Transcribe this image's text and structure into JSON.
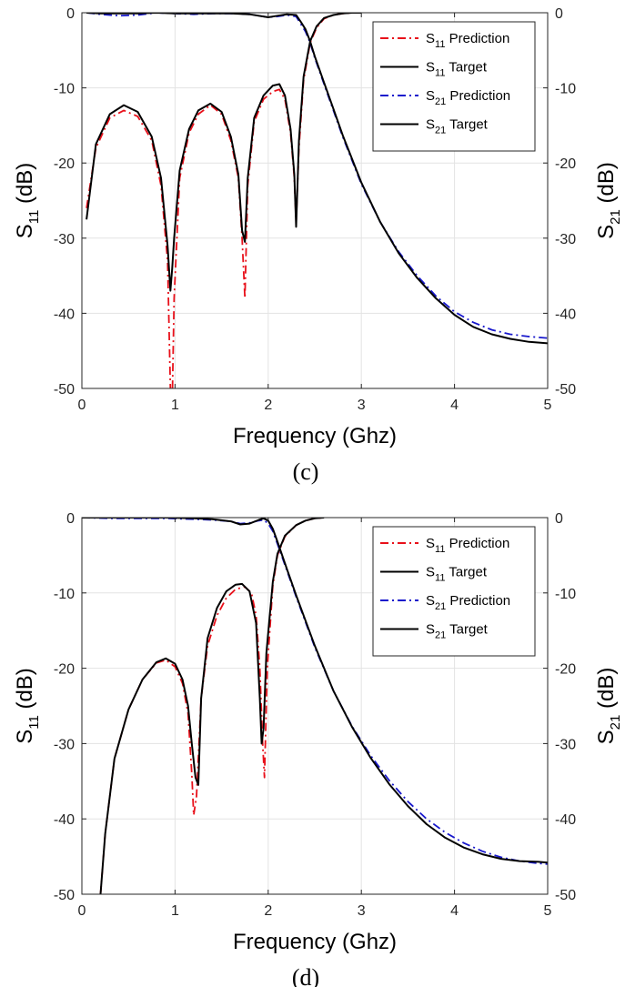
{
  "chart_data": [
    {
      "type": "line",
      "caption": "(c)",
      "xlabel": "Frequency (Ghz)",
      "ylabel_left": {
        "main": "S",
        "sub": "11",
        "unit": " (dB)"
      },
      "ylabel_right": {
        "main": "S",
        "sub": "21",
        "unit": " (dB)"
      },
      "xlim": [
        0,
        5
      ],
      "ylim": [
        -50,
        0
      ],
      "xticks": [
        "0",
        "1",
        "2",
        "3",
        "4",
        "5"
      ],
      "yticks": [
        "0",
        "-10",
        "-20",
        "-30",
        "-40",
        "-50"
      ],
      "grid": true,
      "legend_position": "top-right",
      "series": [
        {
          "name": "S11 Prediction",
          "legend_main": "S",
          "legend_sub": "11",
          "legend_rest": " Prediction",
          "color": "#e8101a",
          "style": "dashdot",
          "x": [
            0.05,
            0.15,
            0.3,
            0.45,
            0.6,
            0.75,
            0.85,
            0.92,
            0.95,
            0.97,
            0.99,
            1.05,
            1.15,
            1.25,
            1.38,
            1.5,
            1.6,
            1.68,
            1.72,
            1.75,
            1.78,
            1.85,
            1.95,
            2.05,
            2.12,
            2.18,
            2.24,
            2.28,
            2.3,
            2.33,
            2.38,
            2.45,
            2.52,
            2.6,
            2.7,
            2.8,
            2.9,
            3.0
          ],
          "y": [
            -26,
            -18,
            -14,
            -13,
            -13.8,
            -17,
            -23,
            -33,
            -50,
            -52,
            -38,
            -22,
            -16,
            -13.5,
            -12.3,
            -13.5,
            -17,
            -22,
            -30,
            -38,
            -23,
            -14.5,
            -11.5,
            -10.5,
            -10.2,
            -11.5,
            -16,
            -22,
            -28,
            -18,
            -9,
            -4,
            -2,
            -0.8,
            -0.3,
            -0.1,
            0,
            0
          ]
        },
        {
          "name": "S11 Target",
          "legend_main": "S",
          "legend_sub": "11",
          "legend_rest": " Target",
          "color": "#000000",
          "style": "solid",
          "x": [
            0.05,
            0.15,
            0.3,
            0.45,
            0.6,
            0.75,
            0.85,
            0.92,
            0.95,
            0.97,
            0.99,
            1.05,
            1.15,
            1.25,
            1.38,
            1.5,
            1.6,
            1.68,
            1.72,
            1.75,
            1.78,
            1.85,
            1.95,
            2.05,
            2.12,
            2.18,
            2.24,
            2.28,
            2.3,
            2.33,
            2.38,
            2.45,
            2.52,
            2.6,
            2.7,
            2.8,
            2.9,
            3.0
          ],
          "y": [
            -27.5,
            -17.5,
            -13.5,
            -12.3,
            -13.2,
            -16.5,
            -22,
            -31,
            -37,
            -34,
            -30,
            -21,
            -15.5,
            -13,
            -12.1,
            -13.2,
            -16.5,
            -21.5,
            -29,
            -30.5,
            -22,
            -14,
            -11,
            -9.7,
            -9.5,
            -11,
            -15.5,
            -21.5,
            -28.5,
            -17,
            -8.5,
            -3.8,
            -1.8,
            -0.7,
            -0.3,
            -0.1,
            0,
            0
          ]
        },
        {
          "name": "S21 Prediction",
          "legend_main": "S",
          "legend_sub": "21",
          "legend_rest": " Prediction",
          "color": "#1818cc",
          "style": "dashdot",
          "x": [
            0.05,
            0.2,
            0.4,
            0.6,
            0.8,
            1.0,
            1.2,
            1.4,
            1.6,
            1.8,
            2.0,
            2.1,
            2.2,
            2.3,
            2.35,
            2.4,
            2.45,
            2.5,
            2.6,
            2.7,
            2.8,
            3.0,
            3.2,
            3.4,
            3.6,
            3.8,
            4.0,
            4.2,
            4.4,
            4.6,
            4.8,
            5.0
          ],
          "y": [
            0,
            -0.2,
            -0.4,
            -0.3,
            0,
            -0.1,
            -0.2,
            -0.1,
            -0.1,
            -0.2,
            -0.6,
            -0.5,
            -0.3,
            -0.5,
            -1.5,
            -2.5,
            -4,
            -6,
            -9.5,
            -13,
            -16.5,
            -22.8,
            -27.8,
            -31.8,
            -35,
            -37.7,
            -39.8,
            -41.2,
            -42.2,
            -42.8,
            -43.1,
            -43.3
          ]
        },
        {
          "name": "S21 Target",
          "legend_main": "S",
          "legend_sub": "21",
          "legend_rest": " Target",
          "color": "#000000",
          "style": "solid",
          "x": [
            0.05,
            0.2,
            0.4,
            0.6,
            0.8,
            1.0,
            1.2,
            1.4,
            1.6,
            1.8,
            2.0,
            2.1,
            2.2,
            2.3,
            2.35,
            2.4,
            2.45,
            2.5,
            2.6,
            2.7,
            2.8,
            3.0,
            3.2,
            3.4,
            3.6,
            3.8,
            4.0,
            4.2,
            4.4,
            4.6,
            4.8,
            5.0
          ],
          "y": [
            0,
            -0.1,
            -0.1,
            -0.1,
            0,
            -0.1,
            -0.1,
            -0.1,
            -0.1,
            -0.2,
            -0.6,
            -0.4,
            -0.2,
            -0.3,
            -1.2,
            -2.2,
            -3.8,
            -5.8,
            -9.3,
            -12.8,
            -16.3,
            -22.6,
            -27.8,
            -32,
            -35.3,
            -38,
            -40.2,
            -41.8,
            -42.8,
            -43.4,
            -43.8,
            -44
          ]
        }
      ]
    },
    {
      "type": "line",
      "caption": "(d)",
      "xlabel": "Frequency (Ghz)",
      "ylabel_left": {
        "main": "S",
        "sub": "11",
        "unit": " (dB)"
      },
      "ylabel_right": {
        "main": "S",
        "sub": "21",
        "unit": " (dB)"
      },
      "xlim": [
        0,
        5
      ],
      "ylim": [
        -50,
        0
      ],
      "xticks": [
        "0",
        "1",
        "2",
        "3",
        "4",
        "5"
      ],
      "yticks": [
        "0",
        "-10",
        "-20",
        "-30",
        "-40",
        "-50"
      ],
      "grid": true,
      "legend_position": "top-right",
      "series": [
        {
          "name": "S11 Prediction",
          "legend_main": "S",
          "legend_sub": "11",
          "legend_rest": " Prediction",
          "color": "#e8101a",
          "style": "dashdot",
          "x": [
            0.2,
            0.25,
            0.35,
            0.5,
            0.65,
            0.8,
            0.9,
            1.0,
            1.08,
            1.14,
            1.18,
            1.2,
            1.23,
            1.28,
            1.35,
            1.45,
            1.55,
            1.65,
            1.75,
            1.82,
            1.87,
            1.91,
            1.94,
            1.96,
            1.99,
            2.05,
            2.1,
            2.18,
            2.3,
            2.4,
            2.5,
            2.6
          ],
          "y": [
            -50,
            -42,
            -32,
            -25.5,
            -21.5,
            -19.3,
            -18.9,
            -19.8,
            -22,
            -26,
            -34,
            -39.5,
            -37,
            -24,
            -17,
            -13,
            -10.7,
            -9.5,
            -9.2,
            -10,
            -13,
            -20,
            -30,
            -34.5,
            -20,
            -9,
            -5,
            -2.5,
            -1,
            -0.4,
            -0.1,
            0
          ]
        },
        {
          "name": "S11 Target",
          "legend_main": "S",
          "legend_sub": "11",
          "legend_rest": " Target",
          "color": "#000000",
          "style": "solid",
          "x": [
            0.2,
            0.25,
            0.35,
            0.5,
            0.65,
            0.8,
            0.9,
            1.0,
            1.08,
            1.14,
            1.18,
            1.22,
            1.25,
            1.28,
            1.35,
            1.45,
            1.55,
            1.65,
            1.72,
            1.8,
            1.87,
            1.91,
            1.93,
            1.95,
            1.98,
            2.05,
            2.1,
            2.18,
            2.3,
            2.4,
            2.5,
            2.6
          ],
          "y": [
            -50,
            -42,
            -32,
            -25.5,
            -21.5,
            -19.2,
            -18.7,
            -19.4,
            -21.5,
            -25,
            -30,
            -34.5,
            -35.5,
            -24,
            -16,
            -12,
            -9.8,
            -8.9,
            -8.8,
            -9.8,
            -14,
            -24,
            -30,
            -28,
            -18,
            -8.5,
            -4.8,
            -2.4,
            -1,
            -0.4,
            -0.1,
            0
          ]
        },
        {
          "name": "S21 Prediction",
          "legend_main": "S",
          "legend_sub": "21",
          "legend_rest": " Prediction",
          "color": "#1818cc",
          "style": "dashdot",
          "x": [
            0.0,
            0.3,
            0.6,
            0.9,
            1.2,
            1.4,
            1.6,
            1.7,
            1.8,
            1.9,
            1.95,
            2.0,
            2.05,
            2.1,
            2.2,
            2.3,
            2.5,
            2.7,
            2.9,
            3.1,
            3.3,
            3.5,
            3.7,
            3.9,
            4.1,
            4.3,
            4.5,
            4.7,
            4.9,
            5.0
          ],
          "y": [
            0,
            -0.1,
            -0.1,
            -0.1,
            -0.2,
            -0.3,
            -0.5,
            -0.8,
            -0.7,
            -0.4,
            -0.3,
            -0.8,
            -1.8,
            -3.5,
            -7,
            -10.5,
            -17.2,
            -23,
            -27.7,
            -31.6,
            -34.9,
            -37.7,
            -40,
            -41.8,
            -43.2,
            -44.3,
            -45.1,
            -45.6,
            -45.9,
            -46
          ]
        },
        {
          "name": "S21 Target",
          "legend_main": "S",
          "legend_sub": "21",
          "legend_rest": " Target",
          "color": "#000000",
          "style": "solid",
          "x": [
            0.0,
            0.3,
            0.6,
            0.9,
            1.2,
            1.4,
            1.6,
            1.7,
            1.8,
            1.9,
            1.95,
            2.0,
            2.05,
            2.1,
            2.2,
            2.3,
            2.5,
            2.7,
            2.9,
            3.1,
            3.3,
            3.5,
            3.7,
            3.9,
            4.1,
            4.3,
            4.5,
            4.7,
            4.9,
            5.0
          ],
          "y": [
            0,
            0,
            0,
            0,
            -0.1,
            -0.2,
            -0.5,
            -0.9,
            -0.8,
            -0.3,
            -0.1,
            -0.4,
            -1.5,
            -3.2,
            -6.8,
            -10.3,
            -17,
            -23,
            -27.8,
            -31.9,
            -35.4,
            -38.3,
            -40.7,
            -42.5,
            -43.8,
            -44.7,
            -45.3,
            -45.6,
            -45.7,
            -45.8
          ]
        }
      ]
    }
  ]
}
